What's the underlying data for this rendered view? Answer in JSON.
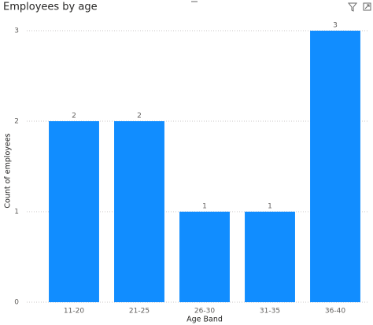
{
  "chart_data": {
    "type": "bar",
    "title": "Employees by age",
    "x_label": "Age Band",
    "y_label": "Count of employees",
    "categories": [
      "11-20",
      "21-25",
      "26-30",
      "31-35",
      "36-40"
    ],
    "values": [
      2,
      2,
      1,
      1,
      3
    ],
    "color": "#118DFF",
    "ylim": [
      0,
      3
    ],
    "yticks": [
      0,
      1,
      2,
      3
    ],
    "grid": true
  }
}
